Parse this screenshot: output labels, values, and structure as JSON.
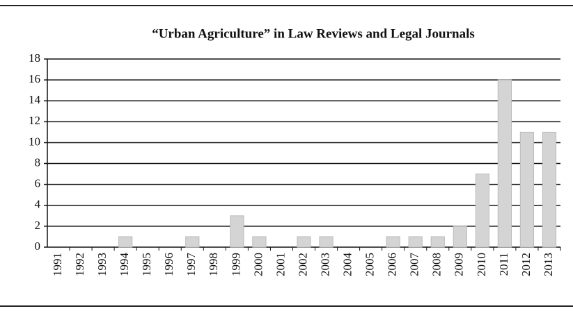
{
  "chart_data": {
    "type": "bar",
    "title": "“Urban Agriculture” in Law Reviews and Legal Journals",
    "categories": [
      "1991",
      "1992",
      "1993",
      "1994",
      "1995",
      "1996",
      "1997",
      "1998",
      "1999",
      "2000",
      "2001",
      "2002",
      "2003",
      "2004",
      "2005",
      "2006",
      "2007",
      "2008",
      "2009",
      "2010",
      "2011",
      "2012",
      "2013"
    ],
    "values": [
      0,
      0,
      0,
      1,
      0,
      0,
      1,
      0,
      3,
      1,
      0,
      1,
      1,
      0,
      0,
      1,
      1,
      1,
      2,
      7,
      16,
      11,
      11
    ],
    "color": "#d4d4d4",
    "ylim": [
      0,
      18
    ],
    "yticks": [
      0,
      2,
      4,
      6,
      8,
      10,
      12,
      14,
      16,
      18
    ],
    "grid": true
  }
}
